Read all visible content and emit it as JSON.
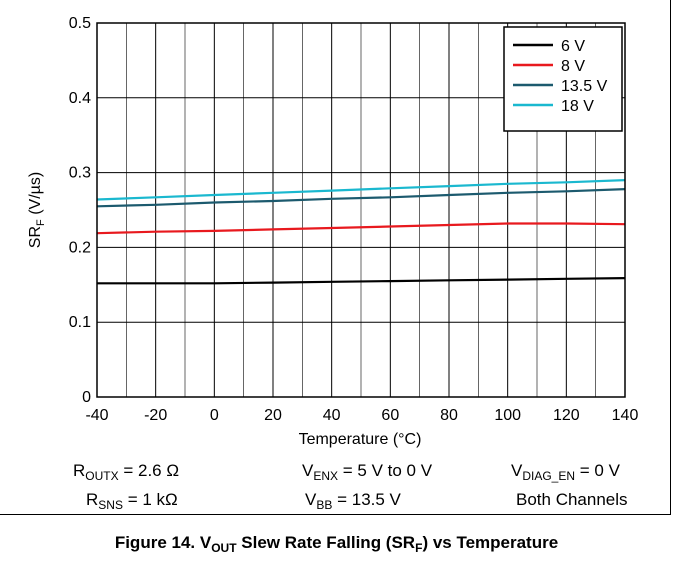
{
  "chart_data": {
    "type": "line",
    "title": "",
    "xlabel": "Temperature (°C)",
    "ylabel": {
      "main": "SR",
      "sub": "F",
      "unit": " (V/µs)"
    },
    "xlim": [
      -40,
      140
    ],
    "ylim": [
      0,
      0.5
    ],
    "xticks": [
      -40,
      -20,
      0,
      20,
      40,
      60,
      80,
      100,
      120,
      140
    ],
    "yticks": [
      0,
      0.1,
      0.2,
      0.3,
      0.4,
      0.5
    ],
    "ytick_labels": [
      "0",
      "0.1",
      "0.2",
      "0.3",
      "0.4",
      "0.5"
    ],
    "grid": true,
    "legend_position": "top-right",
    "series": [
      {
        "name": "6 V",
        "color": "#000000",
        "x": [
          -40,
          -20,
          0,
          20,
          40,
          60,
          80,
          100,
          120,
          140
        ],
        "y": [
          0.152,
          0.152,
          0.152,
          0.153,
          0.154,
          0.155,
          0.156,
          0.157,
          0.158,
          0.159
        ]
      },
      {
        "name": "8 V",
        "color": "#e8191e",
        "x": [
          -40,
          -20,
          0,
          20,
          40,
          60,
          80,
          100,
          120,
          140
        ],
        "y": [
          0.219,
          0.221,
          0.222,
          0.224,
          0.226,
          0.228,
          0.23,
          0.232,
          0.232,
          0.231
        ]
      },
      {
        "name": "13.5 V",
        "color": "#1c5a6e",
        "x": [
          -40,
          -20,
          0,
          20,
          40,
          60,
          80,
          100,
          120,
          140
        ],
        "y": [
          0.255,
          0.257,
          0.26,
          0.262,
          0.265,
          0.267,
          0.27,
          0.273,
          0.275,
          0.278
        ]
      },
      {
        "name": "18 V",
        "color": "#1ab8cf",
        "x": [
          -40,
          -20,
          0,
          20,
          40,
          60,
          80,
          100,
          120,
          140
        ],
        "y": [
          0.264,
          0.267,
          0.27,
          0.273,
          0.276,
          0.279,
          0.282,
          0.285,
          0.287,
          0.29
        ]
      }
    ]
  },
  "conditions": {
    "routx": {
      "main": "R",
      "sub": "OUTX",
      "rest": " = 2.6 Ω"
    },
    "venx": {
      "main": "V",
      "sub": "ENX",
      "rest": " = 5 V to 0 V"
    },
    "vdiag": {
      "main": "V",
      "sub": "DIAG_EN",
      "rest": " = 0 V"
    },
    "rsns": {
      "main": "R",
      "sub": "SNS",
      "rest": " = 1 kΩ"
    },
    "vbb": {
      "main": "V",
      "sub": "BB",
      "rest": " = 13.5 V"
    },
    "channels": "Both Channels"
  },
  "figure_caption": {
    "prefix": "Figure 14. V",
    "sub1": "OUT",
    "mid": " Slew Rate Falling (SR",
    "sub2": "F",
    "suffix": ") vs Temperature"
  }
}
